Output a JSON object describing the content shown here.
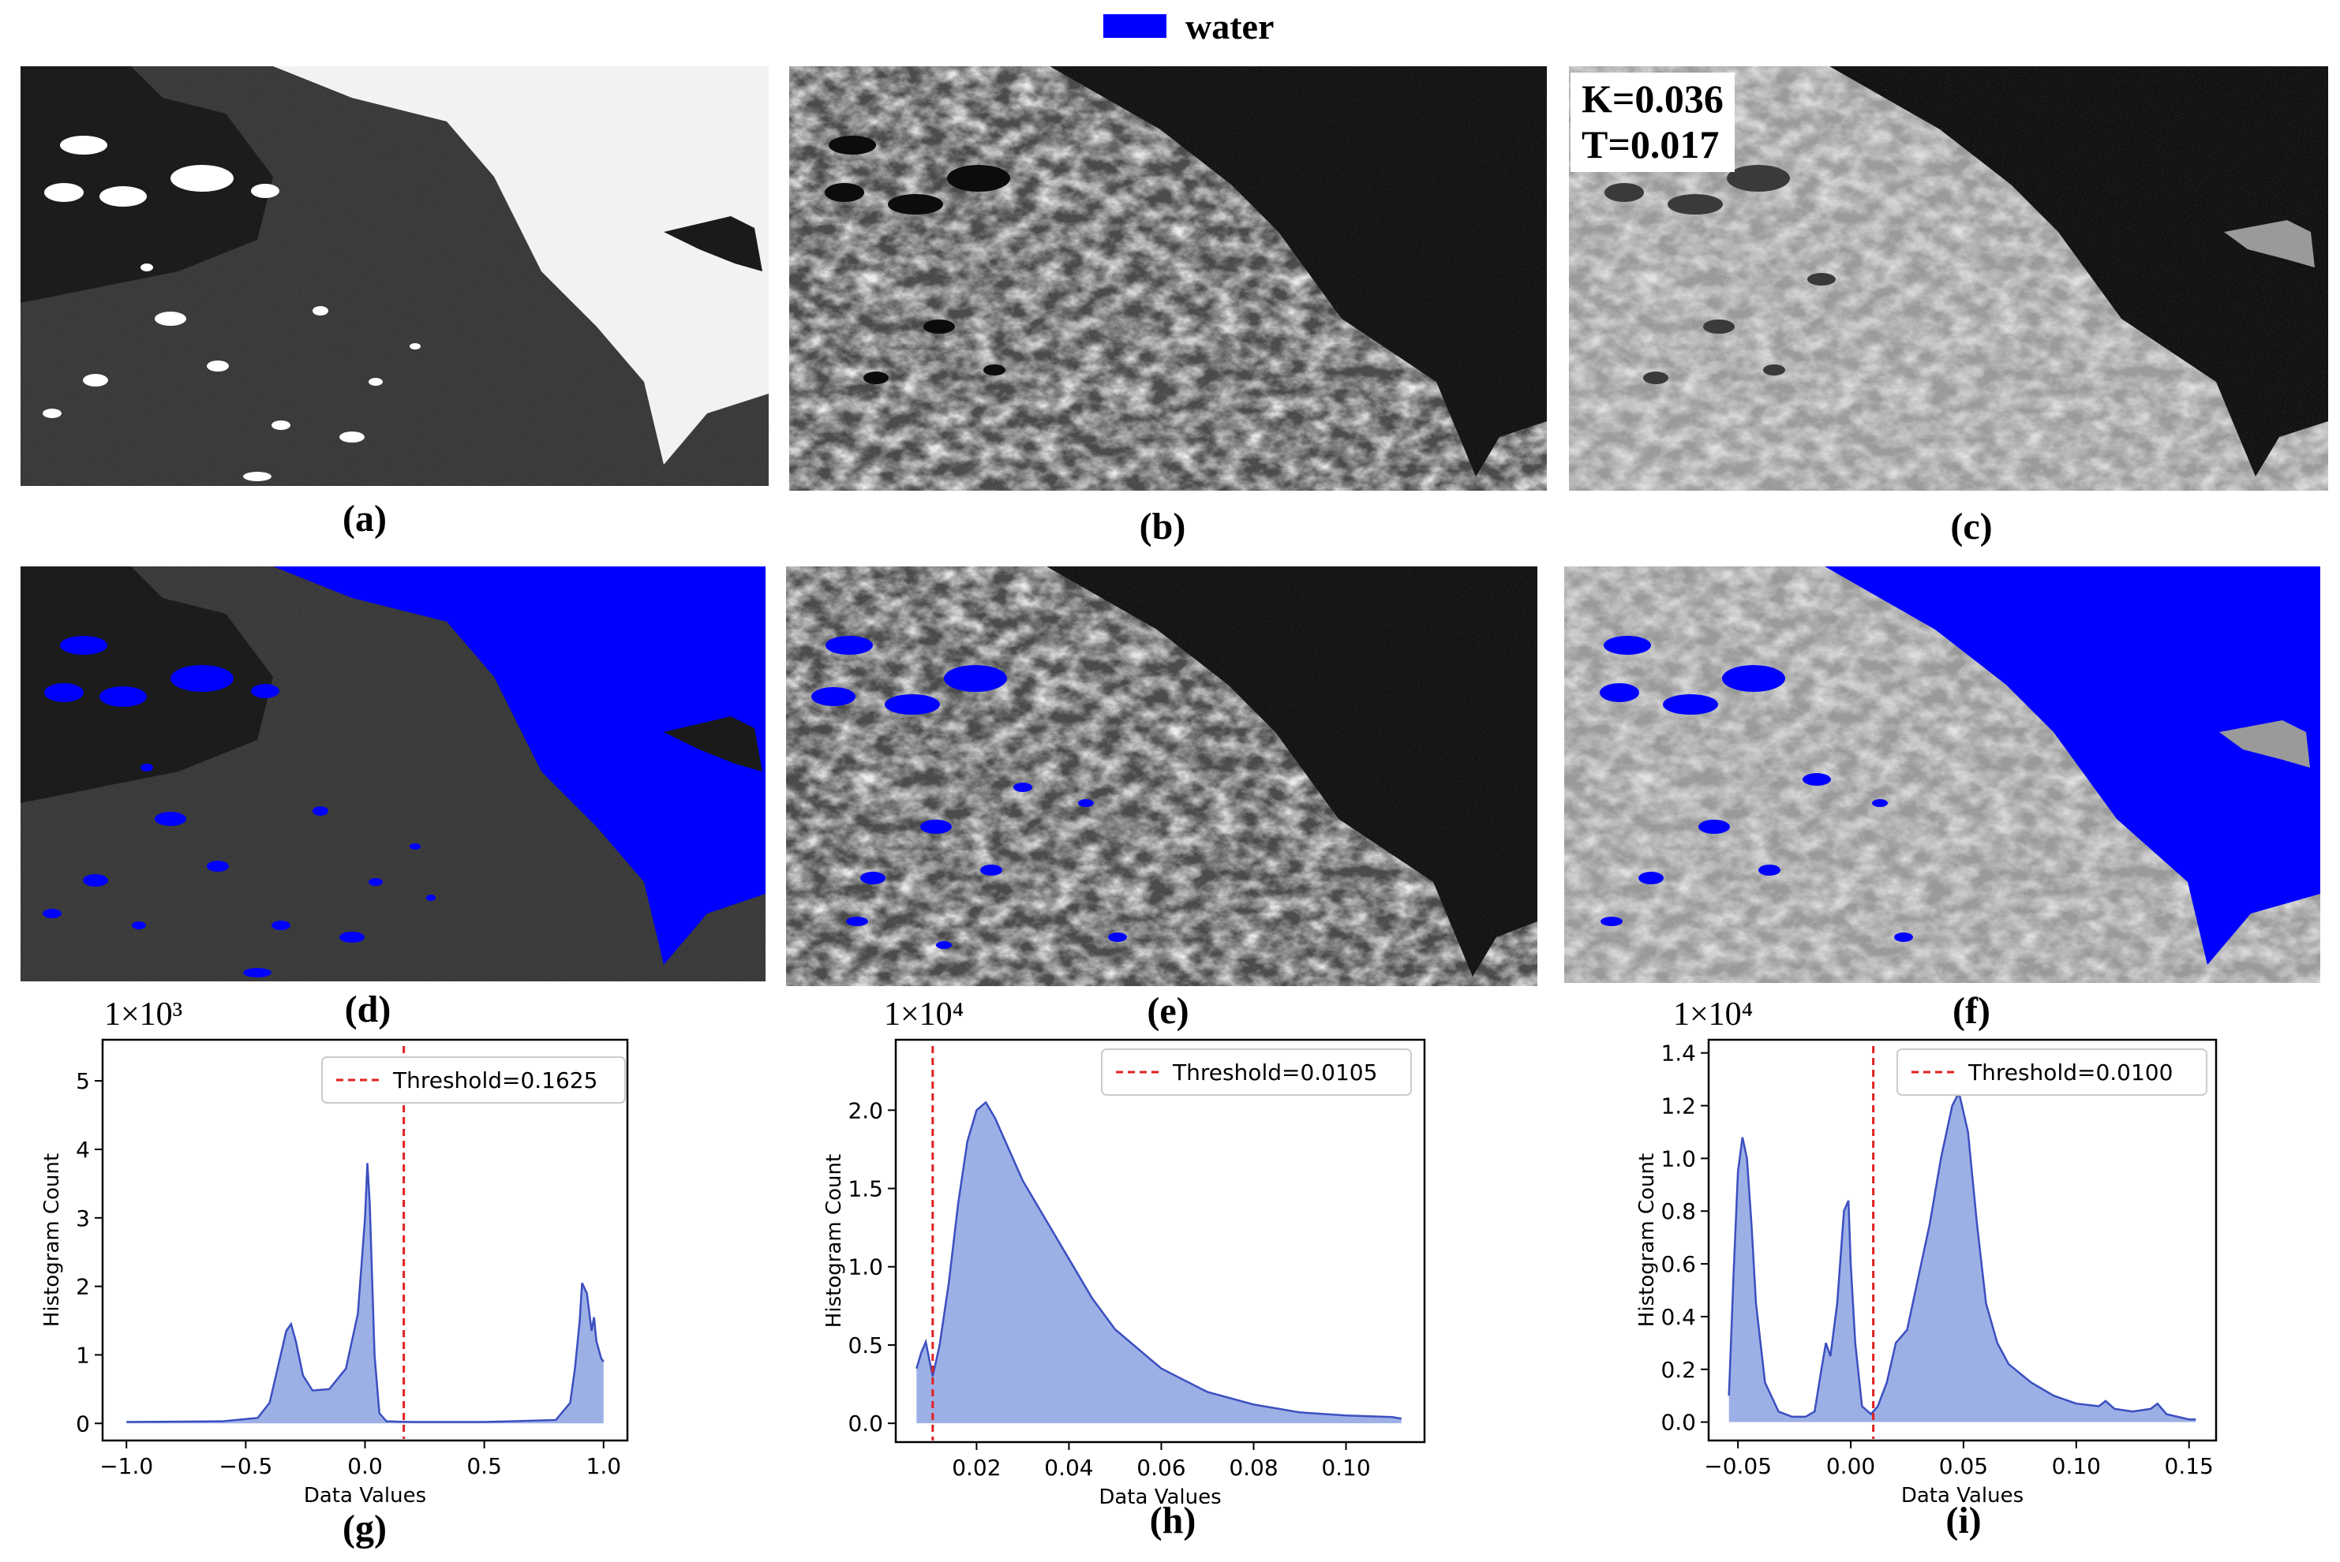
{
  "legend": {
    "label": "water",
    "color": "#0000ff"
  },
  "captions": [
    "(a)",
    "(b)",
    "(c)",
    "(d)",
    "(e)",
    "(f)",
    "(g)",
    "(h)",
    "(i)"
  ],
  "panel_c_annotation": {
    "k": "K=0.036",
    "t": "T=0.017"
  },
  "colors": {
    "fill": "#9db0e6",
    "line": "#3b4fc0",
    "threshold": "#e02020",
    "water": "#0000ff"
  },
  "chart_data": [
    {
      "type": "area",
      "id": "g",
      "multiplier": "1×10³",
      "xlabel": "Data Values",
      "ylabel": "Histogram Count",
      "xlim": [
        -1.1,
        1.1
      ],
      "ylim": [
        -0.25,
        5.6
      ],
      "xticks": [
        -1.0,
        -0.5,
        0.0,
        0.5,
        1.0
      ],
      "xtick_labels": [
        "−1.0",
        "−0.5",
        "0.0",
        "0.5",
        "1.0"
      ],
      "yticks": [
        0,
        1,
        2,
        3,
        4,
        5
      ],
      "ytick_labels": [
        "0",
        "1",
        "2",
        "3",
        "4",
        "5"
      ],
      "threshold": 0.1625,
      "legend_label": "Threshold=0.1625",
      "legend_position": "top-right",
      "x": [
        -1.0,
        -0.6,
        -0.45,
        -0.4,
        -0.36,
        -0.33,
        -0.31,
        -0.29,
        -0.26,
        -0.22,
        -0.15,
        -0.08,
        -0.03,
        0.0,
        0.01,
        0.02,
        0.04,
        0.06,
        0.09,
        0.2,
        0.5,
        0.8,
        0.86,
        0.88,
        0.9,
        0.91,
        0.93,
        0.95,
        0.96,
        0.97,
        0.99,
        1.0
      ],
      "y": [
        0.02,
        0.03,
        0.08,
        0.3,
        0.9,
        1.35,
        1.45,
        1.2,
        0.7,
        0.48,
        0.5,
        0.8,
        1.6,
        3.0,
        3.8,
        3.2,
        1.0,
        0.15,
        0.03,
        0.02,
        0.02,
        0.05,
        0.3,
        0.8,
        1.5,
        2.05,
        1.9,
        1.35,
        1.55,
        1.2,
        0.95,
        0.9
      ]
    },
    {
      "type": "area",
      "id": "h",
      "multiplier": "1×10⁴",
      "xlabel": "Data Values",
      "ylabel": "Histogram Count",
      "xlim": [
        0.0025,
        0.117
      ],
      "ylim": [
        -0.12,
        2.45
      ],
      "xticks": [
        0.02,
        0.04,
        0.06,
        0.08,
        0.1
      ],
      "xtick_labels": [
        "0.02",
        "0.04",
        "0.06",
        "0.08",
        "0.10"
      ],
      "yticks": [
        0.0,
        0.5,
        1.0,
        1.5,
        2.0
      ],
      "ytick_labels": [
        "0.0",
        "0.5",
        "1.0",
        "1.5",
        "2.0"
      ],
      "threshold": 0.0105,
      "legend_label": "Threshold=0.0105",
      "legend_position": "top-right",
      "x": [
        0.007,
        0.008,
        0.009,
        0.0105,
        0.012,
        0.014,
        0.016,
        0.018,
        0.02,
        0.022,
        0.024,
        0.027,
        0.03,
        0.035,
        0.04,
        0.045,
        0.05,
        0.06,
        0.07,
        0.08,
        0.09,
        0.1,
        0.11,
        0.112
      ],
      "y": [
        0.35,
        0.45,
        0.52,
        0.3,
        0.5,
        0.9,
        1.4,
        1.8,
        2.0,
        2.05,
        1.95,
        1.75,
        1.55,
        1.3,
        1.05,
        0.8,
        0.6,
        0.35,
        0.2,
        0.12,
        0.07,
        0.05,
        0.04,
        0.03
      ]
    },
    {
      "type": "area",
      "id": "i",
      "multiplier": "1×10⁴",
      "xlabel": "Data Values",
      "ylabel": "Histogram Count",
      "xlim": [
        -0.063,
        0.162
      ],
      "ylim": [
        -0.07,
        1.45
      ],
      "xticks": [
        -0.05,
        0.0,
        0.05,
        0.1,
        0.15
      ],
      "xtick_labels": [
        "−0.05",
        "0.00",
        "0.05",
        "0.10",
        "0.15"
      ],
      "yticks": [
        0.0,
        0.2,
        0.4,
        0.6,
        0.8,
        1.0,
        1.2,
        1.4
      ],
      "ytick_labels": [
        "0.0",
        "0.2",
        "0.4",
        "0.6",
        "0.8",
        "1.0",
        "1.2",
        "1.4"
      ],
      "threshold": 0.01,
      "legend_label": "Threshold=0.0100",
      "legend_position": "top-right",
      "x": [
        -0.054,
        -0.052,
        -0.05,
        -0.048,
        -0.046,
        -0.044,
        -0.042,
        -0.038,
        -0.032,
        -0.026,
        -0.02,
        -0.016,
        -0.013,
        -0.011,
        -0.009,
        -0.006,
        -0.003,
        -0.001,
        0.0,
        0.002,
        0.005,
        0.009,
        0.012,
        0.016,
        0.02,
        0.025,
        0.03,
        0.035,
        0.04,
        0.045,
        0.048,
        0.052,
        0.056,
        0.06,
        0.065,
        0.07,
        0.08,
        0.09,
        0.1,
        0.11,
        0.113,
        0.117,
        0.125,
        0.133,
        0.136,
        0.14,
        0.15,
        0.153
      ],
      "y": [
        0.1,
        0.55,
        0.95,
        1.08,
        1.0,
        0.75,
        0.45,
        0.15,
        0.04,
        0.02,
        0.02,
        0.04,
        0.2,
        0.3,
        0.25,
        0.45,
        0.8,
        0.84,
        0.6,
        0.3,
        0.06,
        0.03,
        0.06,
        0.15,
        0.3,
        0.35,
        0.55,
        0.75,
        1.0,
        1.2,
        1.25,
        1.1,
        0.75,
        0.45,
        0.3,
        0.22,
        0.15,
        0.1,
        0.07,
        0.06,
        0.08,
        0.05,
        0.04,
        0.05,
        0.07,
        0.03,
        0.01,
        0.01
      ]
    }
  ]
}
